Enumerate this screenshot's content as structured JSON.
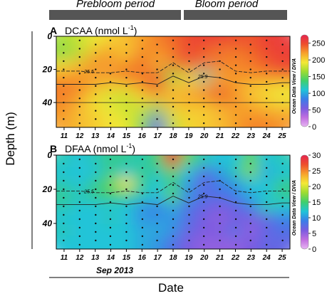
{
  "figure": {
    "periods": [
      {
        "label": "Prebloom period"
      },
      {
        "label": "Bloom period"
      }
    ],
    "y_axis_label": "Depth (m)",
    "x_axis_label": "Date",
    "x_sublabel": "Sep 2013",
    "watermark": "Ocean Data View / DIVA",
    "colors": {
      "period_bar": "#555555",
      "frame": "#000000"
    }
  },
  "chart_data": [
    {
      "panel": "A",
      "type": "heatmap",
      "title": "DCAA (nmol L",
      "unit_sup": "-1",
      "unit_close": ")",
      "x": [
        11,
        12,
        13,
        14,
        15,
        16,
        17,
        18,
        19,
        20,
        21,
        22,
        23,
        24,
        25
      ],
      "xlim": [
        10.5,
        25.5
      ],
      "y_ticks": [
        0,
        20,
        40
      ],
      "ylim": [
        0,
        55
      ],
      "y_inverted": true,
      "colorbar": {
        "ticks": [
          0,
          50,
          100,
          150,
          200,
          250
        ],
        "min": 0,
        "max": 275
      },
      "contours": [
        {
          "label": "25.5"
        },
        {
          "label": "25.9"
        }
      ],
      "grid": [
        [
          170,
          180,
          190,
          200,
          210,
          220,
          230,
          240,
          250,
          255,
          255,
          250,
          245,
          255,
          260
        ],
        [
          150,
          170,
          210,
          230,
          200,
          230,
          225,
          230,
          255,
          240,
          230,
          230,
          240,
          250,
          255
        ],
        [
          195,
          210,
          230,
          215,
          225,
          240,
          210,
          235,
          250,
          235,
          240,
          230,
          230,
          245,
          255
        ],
        [
          220,
          225,
          215,
          230,
          240,
          230,
          245,
          150,
          200,
          120,
          210,
          225,
          230,
          230,
          240
        ],
        [
          235,
          230,
          220,
          200,
          200,
          225,
          250,
          205,
          210,
          215,
          240,
          220,
          205,
          200,
          195
        ],
        [
          230,
          220,
          190,
          180,
          175,
          200,
          210,
          215,
          220,
          230,
          240,
          230,
          210,
          200,
          190
        ],
        [
          225,
          210,
          200,
          190,
          180,
          180,
          150,
          200,
          205,
          200,
          210,
          220,
          220,
          215,
          210
        ],
        [
          220,
          210,
          205,
          195,
          190,
          160,
          60,
          175,
          200,
          205,
          210,
          220,
          230,
          230,
          225
        ]
      ]
    },
    {
      "panel": "B",
      "type": "heatmap",
      "title": "DFAA (nmol L",
      "unit_sup": "-1",
      "unit_close": ")",
      "x": [
        11,
        12,
        13,
        14,
        15,
        16,
        17,
        18,
        19,
        20,
        21,
        22,
        23,
        24,
        25
      ],
      "xlim": [
        10.5,
        25.5
      ],
      "y_ticks": [
        0,
        20,
        40
      ],
      "ylim": [
        0,
        55
      ],
      "y_inverted": true,
      "colorbar": {
        "ticks": [
          0,
          5,
          10,
          15,
          20,
          25,
          30
        ],
        "min": 0,
        "max": 30
      },
      "contours": [
        {
          "label": "25.5"
        },
        {
          "label": "25.9"
        }
      ],
      "grid": [
        [
          13,
          12,
          13,
          14,
          14,
          13,
          15,
          29,
          16,
          13,
          12,
          12,
          16,
          12,
          13
        ],
        [
          12,
          12,
          12,
          14,
          12,
          14,
          13,
          16,
          12,
          8,
          10,
          13,
          17,
          11,
          12
        ],
        [
          13,
          12,
          14,
          16,
          21,
          14,
          12,
          14,
          10,
          7,
          9,
          10,
          12,
          12,
          14
        ],
        [
          14,
          13,
          14,
          15,
          14,
          13,
          12,
          16,
          10,
          8,
          8,
          9,
          11,
          12,
          14
        ],
        [
          13,
          12,
          12,
          12,
          12,
          10,
          9,
          11,
          8,
          7,
          6,
          7,
          9,
          13,
          12
        ],
        [
          12,
          12,
          12,
          13,
          12,
          10,
          10,
          10,
          8,
          6,
          5,
          6,
          6,
          7,
          9
        ],
        [
          13,
          12,
          12,
          12,
          12,
          11,
          11,
          10,
          7,
          6,
          6,
          8,
          5,
          7,
          8
        ],
        [
          12,
          12,
          12,
          12,
          12,
          11,
          10,
          8,
          6,
          5,
          5,
          5,
          6,
          7,
          7
        ]
      ]
    }
  ]
}
